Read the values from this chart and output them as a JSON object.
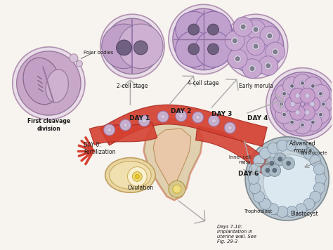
{
  "background": "#f7f3ee",
  "labels": {
    "polar_bodies": "Polar bodies",
    "first_cleavage": "First cleavage\ndivision",
    "two_cell": "2-cell stage",
    "four_cell": "4-cell stage",
    "early_morula": "Early morula",
    "advanced_morula": "Advanced\nmorula",
    "day0": "DAY 0:\nFertilization",
    "day1": "DAY 1",
    "day2": "DAY 2",
    "day3": "DAY 3",
    "day4": "DAY 4",
    "day6": "DAY 6",
    "ovulation": "Ovulation",
    "inner_cell": "Inner cell\nmass",
    "blastocoele": "Blastocoele",
    "trophoblast": "Trophoblast",
    "blastocyst": "Blastocyst",
    "implantation": "Days 7-10:\nImplantation in\nuterine wall. See\nFig. 29-3"
  },
  "cell_light": "#cdb5d0",
  "cell_mid": "#b898c0",
  "cell_dark": "#a07898",
  "cell_outline": "#8a6890",
  "nucleus_dark": "#6a5070",
  "nucleus_light": "#887098",
  "tube_red": "#d44030",
  "tube_dark": "#aa2820",
  "tube_light": "#e05848",
  "ovary_tan": "#e8d098",
  "ovary_outline": "#c0a060",
  "bg_white": "#ffffff",
  "arrow_fill": "#e0e0e0",
  "arrow_edge": "#b0b0b0",
  "blasto_gray": "#9eaab4",
  "blasto_inner": "#c8d4dc",
  "text_dark": "#1a1a1a",
  "text_mid": "#333333"
}
